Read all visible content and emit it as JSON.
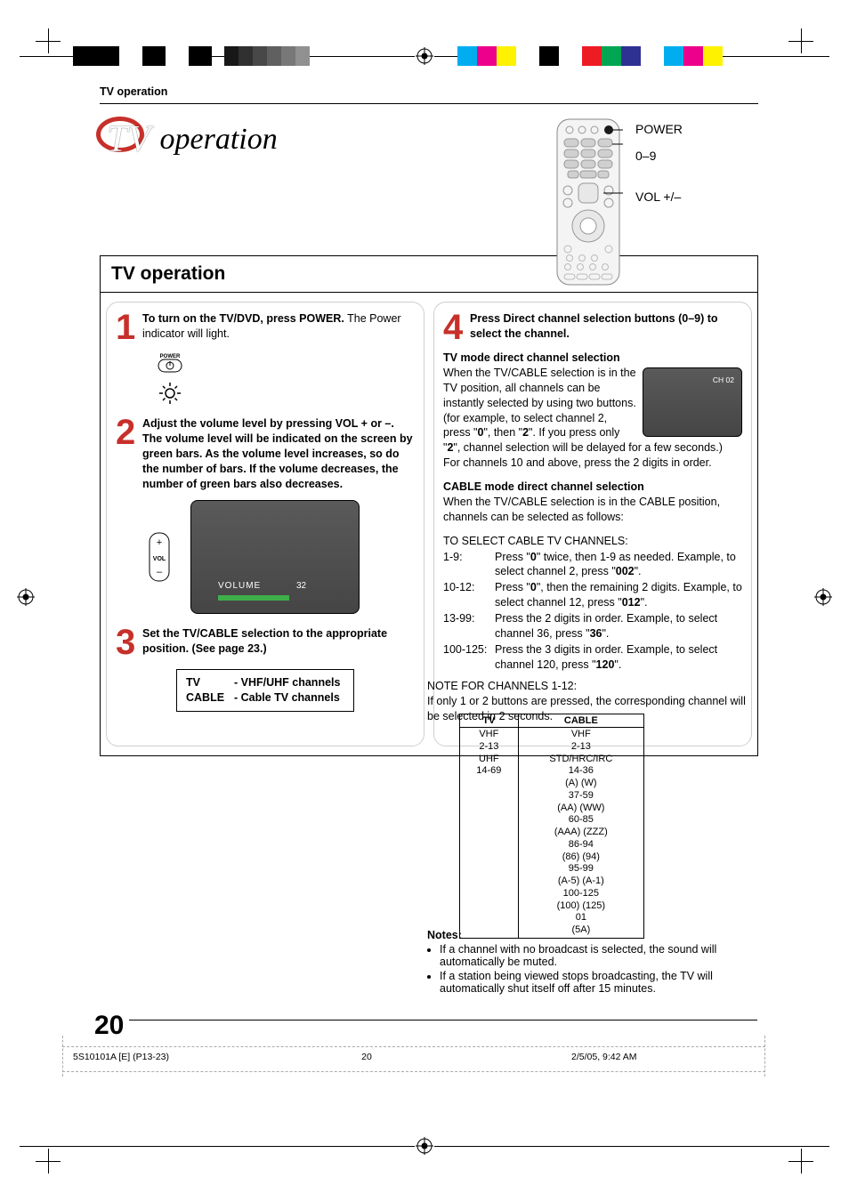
{
  "colors": {
    "accent_red": "#c7302a",
    "green_bar": "#3fae49",
    "screen_grad_top": "#5a5a5a",
    "screen_grad_bot": "#454545",
    "strip_colors": [
      "#00aeef",
      "#ec008c",
      "#ffde00",
      "#000000",
      "#ffffff",
      "#00a651",
      "#f7941d",
      "#ec008c",
      "#ffde00"
    ],
    "greys": [
      "#181818",
      "#303030",
      "#484848",
      "#606060",
      "#787878",
      "#909090",
      "#a8a8a8",
      "#c0c0c0",
      "#d8d8d8",
      "#efefef"
    ]
  },
  "header": {
    "running": "TV operation",
    "title_initial": "TV",
    "title_rest": "operation"
  },
  "remote": {
    "labels": [
      "POWER",
      "0–9",
      "VOL +/–"
    ]
  },
  "box": {
    "heading": "TV operation"
  },
  "steps": {
    "s1": {
      "num": "1",
      "bold": "To turn on the TV/DVD, press POWER.",
      "rest": " The Power indicator will light."
    },
    "power_label": "POWER",
    "s2": {
      "num": "2",
      "text": "Adjust the volume level by pressing VOL + or –. The volume level will be indicated on the screen by green bars. As the volume level increases, so do the number of bars. If the volume decreases, the number of green bars also decreases."
    },
    "vol_screen": {
      "label": "VOLUME",
      "value": "32"
    },
    "s3": {
      "num": "3",
      "text": "Set the TV/CABLE selection to the appropriate position. (See page 23.)"
    },
    "tvcable": {
      "tv_k": "TV",
      "tv_v": "- VHF/UHF channels",
      "cb_k": "CABLE",
      "cb_v": "- Cable TV channels"
    },
    "s4": {
      "num": "4",
      "text": "Press Direct channel selection buttons (0–9) to select the channel."
    }
  },
  "right": {
    "tv_head": "TV mode direct channel selection",
    "tv_body1": "When the TV/CABLE selection is in the TV position, all channels can be instantly selected by using two buttons. (for example, to select channel 2, press \"",
    "tv_body1b": "0",
    "tv_body1c": "\", then \"",
    "tv_body1d": "2",
    "tv_body1e": "\". If you press only \"",
    "tv_body1f": "2",
    "tv_body1g": "\", channel selection will be delayed for a few seconds.) For channels 10 and above, press the 2 digits in order.",
    "ch_label": "CH 02",
    "cable_head": "CABLE mode direct channel selection",
    "cable_intro": "When the TV/CABLE selection is in the CABLE position, channels can be selected as follows:",
    "select_head": "TO SELECT CABLE TV CHANNELS:",
    "rows": [
      {
        "k": "1-9:",
        "v_a": "Press \"",
        "v_b": "0",
        "v_c": "\" twice, then 1-9 as needed. Example, to select channel 2, press \"",
        "v_d": "002",
        "v_e": "\"."
      },
      {
        "k": "10-12:",
        "v_a": "Press \"",
        "v_b": "0",
        "v_c": "\", then the remaining 2 digits. Example, to select channel 12, press \"",
        "v_d": "012",
        "v_e": "\"."
      },
      {
        "k": "13-99:",
        "v_a": "Press the 2 digits in order. Example, to select channel 36, press \"",
        "v_b": "36",
        "v_c": "\".",
        "v_d": "",
        "v_e": ""
      },
      {
        "k": "100-125:",
        "v_a": "Press the 3 digits in order. Example, to select channel 120, press \"",
        "v_b": "120",
        "v_c": "\".",
        "v_d": "",
        "v_e": ""
      }
    ]
  },
  "below": {
    "note112_head": "NOTE FOR CHANNELS 1-12:",
    "note112_body": "If only 1 or 2 buttons are pressed, the corresponding channel will be selected in 2 seconds."
  },
  "freq_table": {
    "th_tv": "TV",
    "th_cb": "CABLE",
    "tv_lines": [
      "VHF",
      "2-13",
      "UHF",
      "14-69"
    ],
    "cb_lines": [
      "VHF",
      "2-13",
      "STD/HRC/IRC",
      "14-36",
      "(A) (W)",
      "37-59",
      "(AA) (WW)",
      "60-85",
      "(AAA) (ZZZ)",
      "86-94",
      "(86) (94)",
      "95-99",
      "(A-5) (A-1)",
      "100-125",
      "(100) (125)",
      "01",
      "(5A)"
    ]
  },
  "notes": {
    "head": "Notes:",
    "n1": "If a channel with no broadcast is selected, the sound will automatically be muted.",
    "n2": "If a station being viewed stops broadcasting, the TV will automatically shut itself off after 15 minutes."
  },
  "pagenum": "20",
  "footer": {
    "a": "5S10101A [E] (P13-23)",
    "b": "20",
    "c": "2/5/05, 9:42 AM"
  }
}
